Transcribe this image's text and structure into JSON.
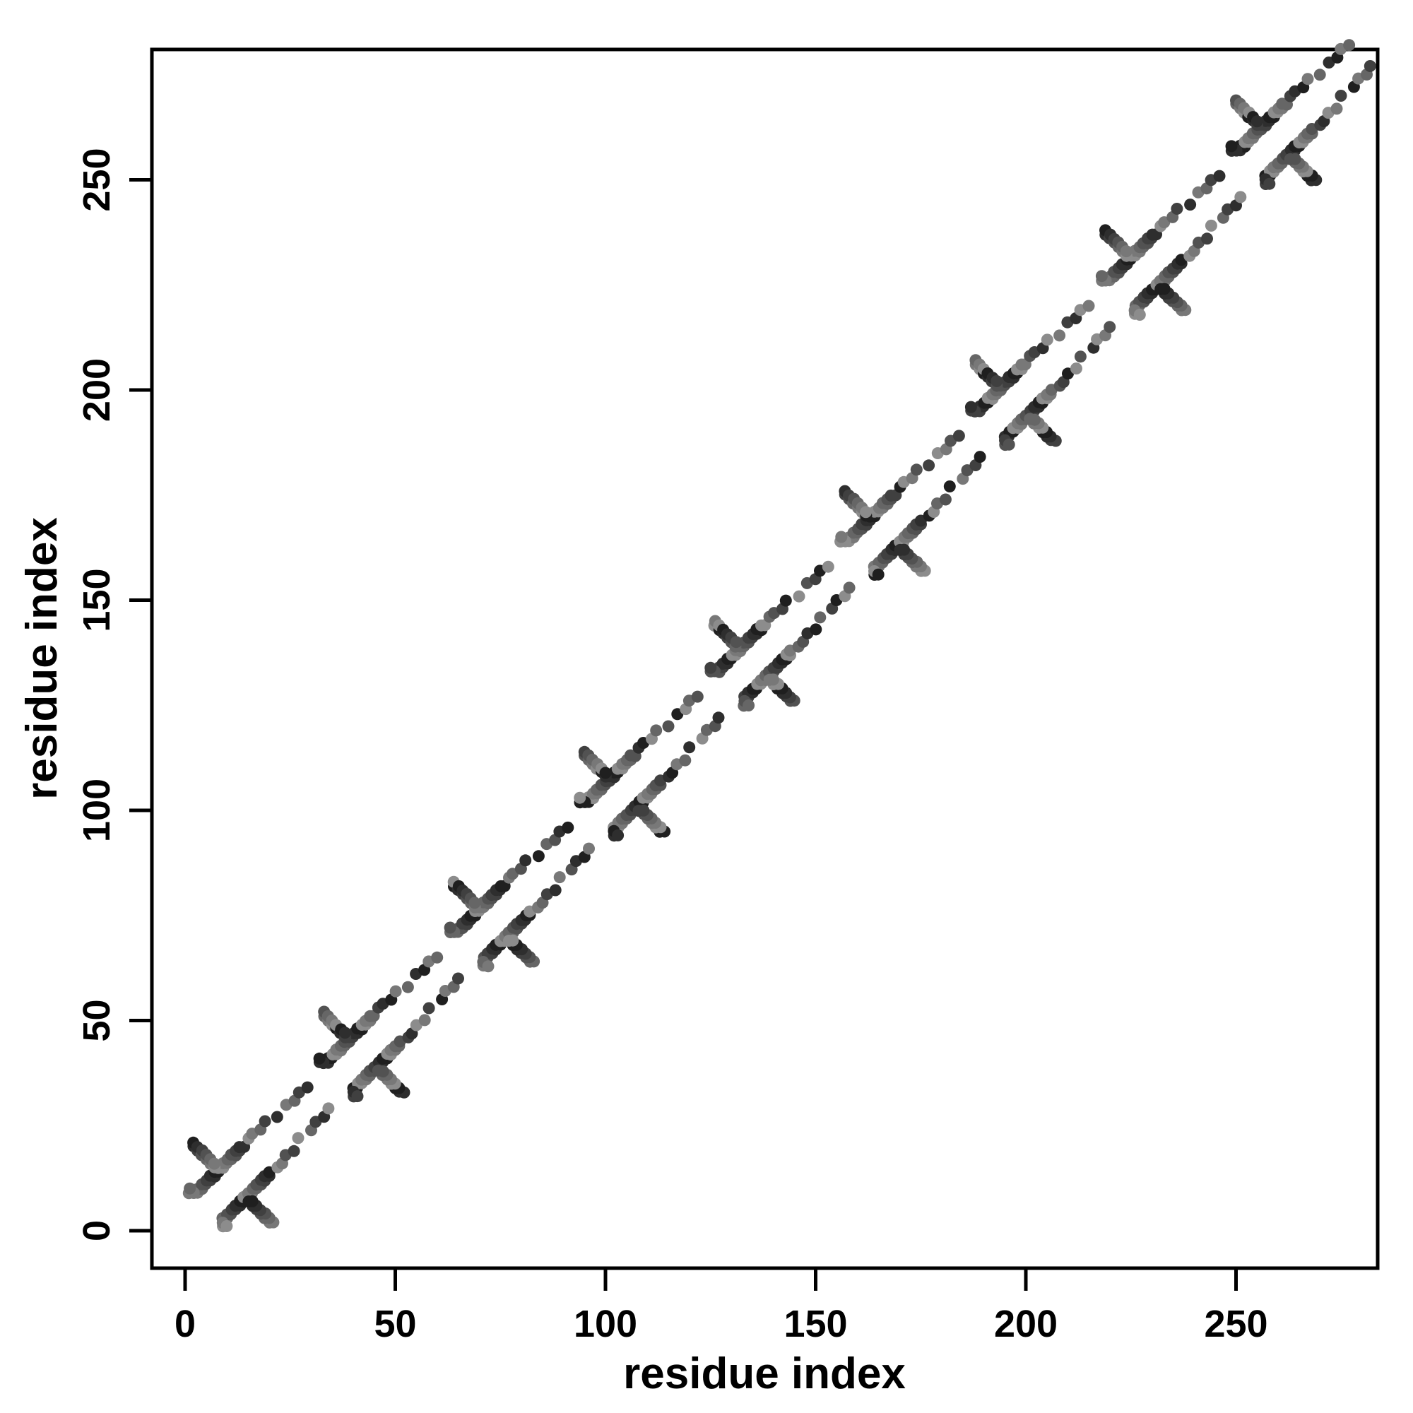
{
  "figure": {
    "kind": "scatter-plot-contact-map",
    "background": "#ffffff",
    "box_color": "#000000"
  },
  "chart_data": {
    "type": "scatter",
    "title": "",
    "xlabel": "residue index",
    "ylabel": "residue index",
    "xlim": [
      0,
      281
    ],
    "ylim": [
      0,
      281
    ],
    "xticks": [
      0,
      50,
      100,
      150,
      200,
      250
    ],
    "yticks": [
      0,
      50,
      100,
      150,
      200,
      250
    ],
    "grid": false,
    "legend": "none",
    "marker": "filled-circle",
    "marker_radius_px": 8.5,
    "symmetric_about_diagonal": true,
    "expansion_rule": "points are (s+dx, s+dy) and the mirrored (s+dy, s+dx) for every repeat start s in repeat_starts and every [dx,dy] in motif_contacts, clipped to the range 0..283",
    "repeat_period": 31,
    "repeat_starts": [
      0,
      31,
      62,
      93,
      124,
      155,
      186,
      217,
      248
    ],
    "motif_contacts": [
      [
        3,
        9
      ],
      [
        3,
        10
      ],
      [
        4,
        10
      ],
      [
        4,
        11
      ],
      [
        5,
        11
      ],
      [
        5,
        12
      ],
      [
        6,
        12
      ],
      [
        6,
        13
      ],
      [
        7,
        13
      ],
      [
        7,
        14
      ],
      [
        8,
        14
      ],
      [
        8,
        15
      ],
      [
        9,
        15
      ],
      [
        9,
        16
      ],
      [
        10,
        16
      ],
      [
        10,
        17
      ],
      [
        11,
        17
      ],
      [
        11,
        18
      ],
      [
        12,
        18
      ],
      [
        2,
        20
      ],
      [
        2,
        21
      ],
      [
        3,
        19
      ],
      [
        3,
        20
      ],
      [
        4,
        18
      ],
      [
        4,
        19
      ],
      [
        5,
        17
      ],
      [
        5,
        18
      ],
      [
        6,
        16
      ],
      [
        6,
        17
      ],
      [
        7,
        15
      ],
      [
        7,
        16
      ],
      [
        1,
        9
      ],
      [
        2,
        9
      ],
      [
        1,
        10
      ],
      [
        12,
        19
      ],
      [
        13,
        19
      ],
      [
        13,
        20
      ],
      [
        14,
        20
      ],
      [
        15,
        22
      ],
      [
        16,
        23
      ],
      [
        18,
        24
      ],
      [
        19,
        26
      ],
      [
        22,
        27
      ],
      [
        24,
        30
      ],
      [
        26,
        31
      ],
      [
        27,
        33
      ],
      [
        29,
        34
      ]
    ],
    "point_grays": [
      "#1f1f1f",
      "#2e2e2e",
      "#404040",
      "#525252",
      "#666666",
      "#787878",
      "#8c8c8c"
    ]
  },
  "axes": {
    "x_title": "residue index",
    "y_title": "residue index"
  }
}
